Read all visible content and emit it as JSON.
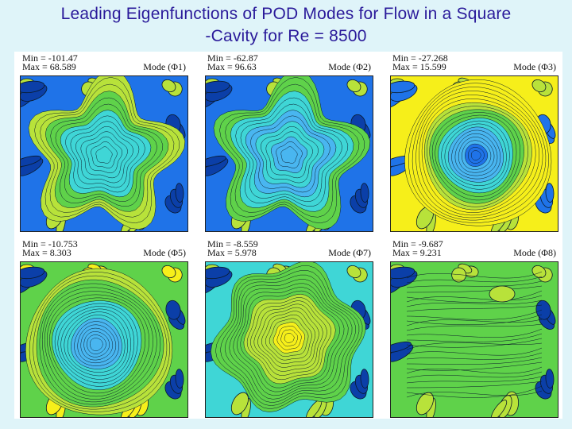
{
  "title_line1": "Leading Eigenfunctions of POD Modes for Flow in a Square",
  "title_line2": "-Cavity for Re = 8500",
  "panels": [
    {
      "min": "Min = -101.47",
      "max": "Max = 68.589",
      "mode": "Mode (Φ1)",
      "style": "star-green"
    },
    {
      "min": "Min = -62.87",
      "max": "Max = 96.63",
      "mode": "Mode (Φ2)",
      "style": "star-cyan"
    },
    {
      "min": "Min = -27.268",
      "max": "Max = 15.599",
      "mode": "Mode (Φ3)",
      "style": "vortex-blue"
    },
    {
      "min": "Min = -10.753",
      "max": "Max = 8.303",
      "mode": "Mode (Φ5)",
      "style": "vortex-green"
    },
    {
      "min": "Min = -8.559",
      "max": "Max = 5.978",
      "mode": "Mode (Φ7)",
      "style": "hex-green"
    },
    {
      "min": "Min = -9.687",
      "max": "Max = 9.231",
      "mode": "Mode (Φ8)",
      "style": "diffuse-green"
    }
  ],
  "colors": {
    "title": "#2a1a9a",
    "background": "#dff4f9",
    "yellow": "#f6ef1a",
    "lime": "#b8e23a",
    "green": "#5fd24a",
    "cyan": "#3fd6d6",
    "lightblue": "#49b6f0",
    "blue": "#1f73e8",
    "darkblue": "#0b3fa8",
    "contour": "#0a1a2a"
  }
}
